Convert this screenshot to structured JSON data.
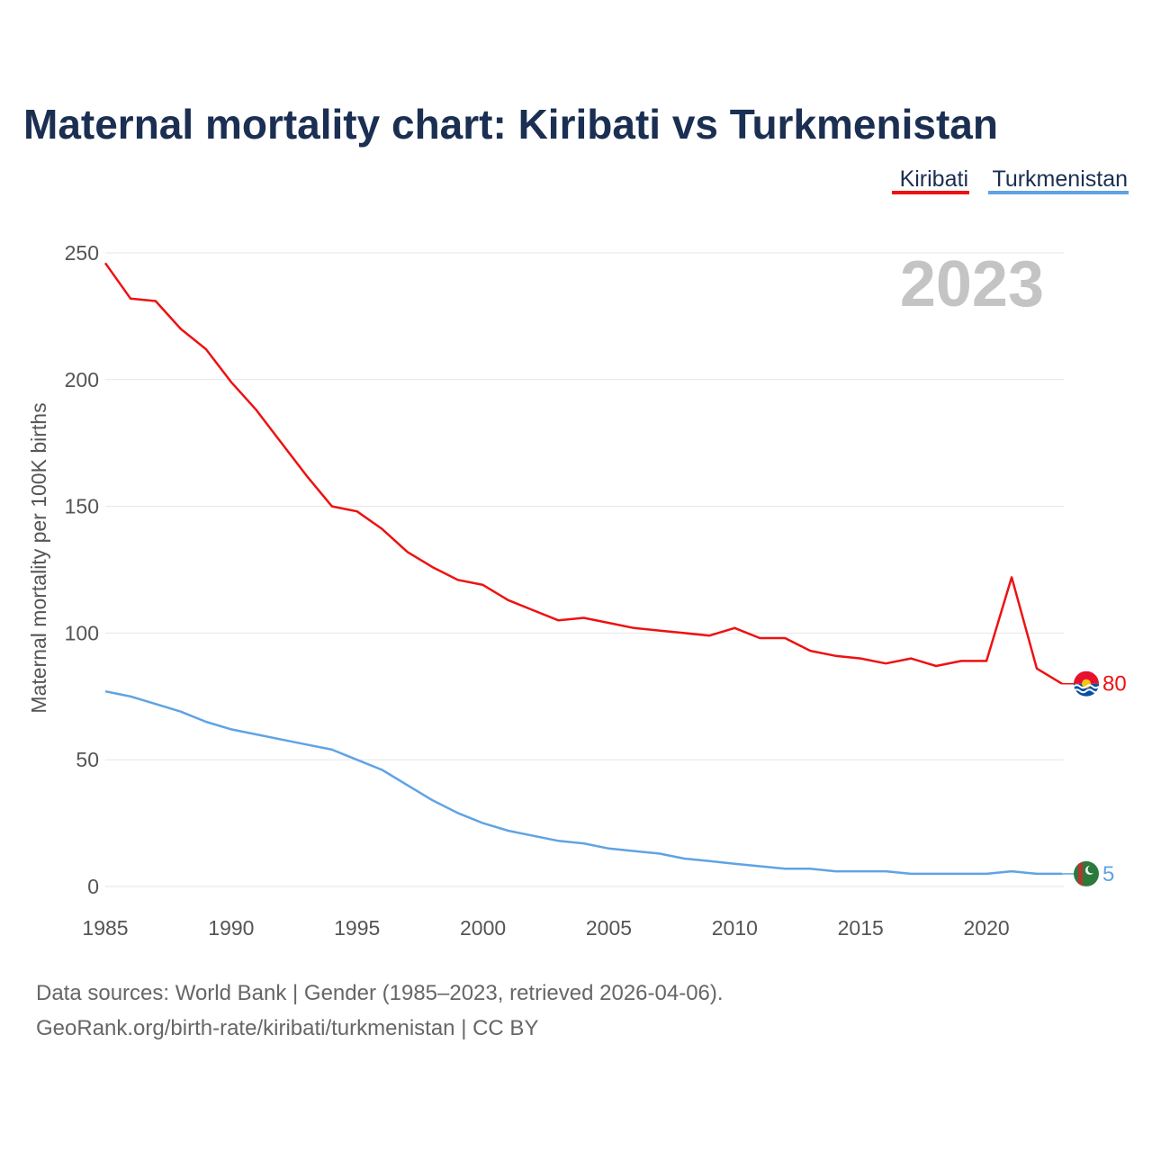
{
  "chart_data": {
    "type": "line",
    "title": "Maternal mortality chart: Kiribati vs Turkmenistan",
    "ylabel": "Maternal mortality per 100K births",
    "xlabel": "",
    "ylim": [
      0,
      250
    ],
    "xlim": [
      1985,
      2023
    ],
    "y_ticks": [
      "0",
      "50",
      "100",
      "150",
      "200",
      "250"
    ],
    "x_ticks": [
      "1985",
      "1990",
      "1995",
      "2000",
      "2005",
      "2010",
      "2015",
      "2020"
    ],
    "year_label": "2023",
    "legend_position": "top-right",
    "x": [
      1985,
      1986,
      1987,
      1988,
      1989,
      1990,
      1991,
      1992,
      1993,
      1994,
      1995,
      1996,
      1997,
      1998,
      1999,
      2000,
      2001,
      2002,
      2003,
      2004,
      2005,
      2006,
      2007,
      2008,
      2009,
      2010,
      2011,
      2012,
      2013,
      2014,
      2015,
      2016,
      2017,
      2018,
      2019,
      2020,
      2021,
      2022,
      2023
    ],
    "series": [
      {
        "name": "Kiribati",
        "color": "#ee1111",
        "end_label": "80",
        "flag": "kiribati-flag",
        "values": [
          246,
          232,
          231,
          220,
          212,
          199,
          188,
          175,
          162,
          150,
          148,
          141,
          132,
          126,
          121,
          119,
          113,
          109,
          105,
          106,
          104,
          102,
          101,
          100,
          99,
          102,
          98,
          98,
          93,
          91,
          90,
          88,
          90,
          87,
          89,
          89,
          122,
          86,
          80
        ]
      },
      {
        "name": "Turkmenistan",
        "color": "#5fa3e4",
        "end_label": "5",
        "flag": "turkmenistan-flag",
        "values": [
          77,
          75,
          72,
          69,
          65,
          62,
          60,
          58,
          56,
          54,
          50,
          46,
          40,
          34,
          29,
          25,
          22,
          20,
          18,
          17,
          15,
          14,
          13,
          11,
          10,
          9,
          8,
          7,
          7,
          6,
          6,
          6,
          5,
          5,
          5,
          5,
          6,
          5,
          5
        ]
      }
    ]
  },
  "footer": {
    "source_line": "Data sources: World Bank | Gender (1985–2023, retrieved 2026-04-06).",
    "credit_line": "GeoRank.org/birth-rate/kiribati/turkmenistan | CC BY"
  }
}
